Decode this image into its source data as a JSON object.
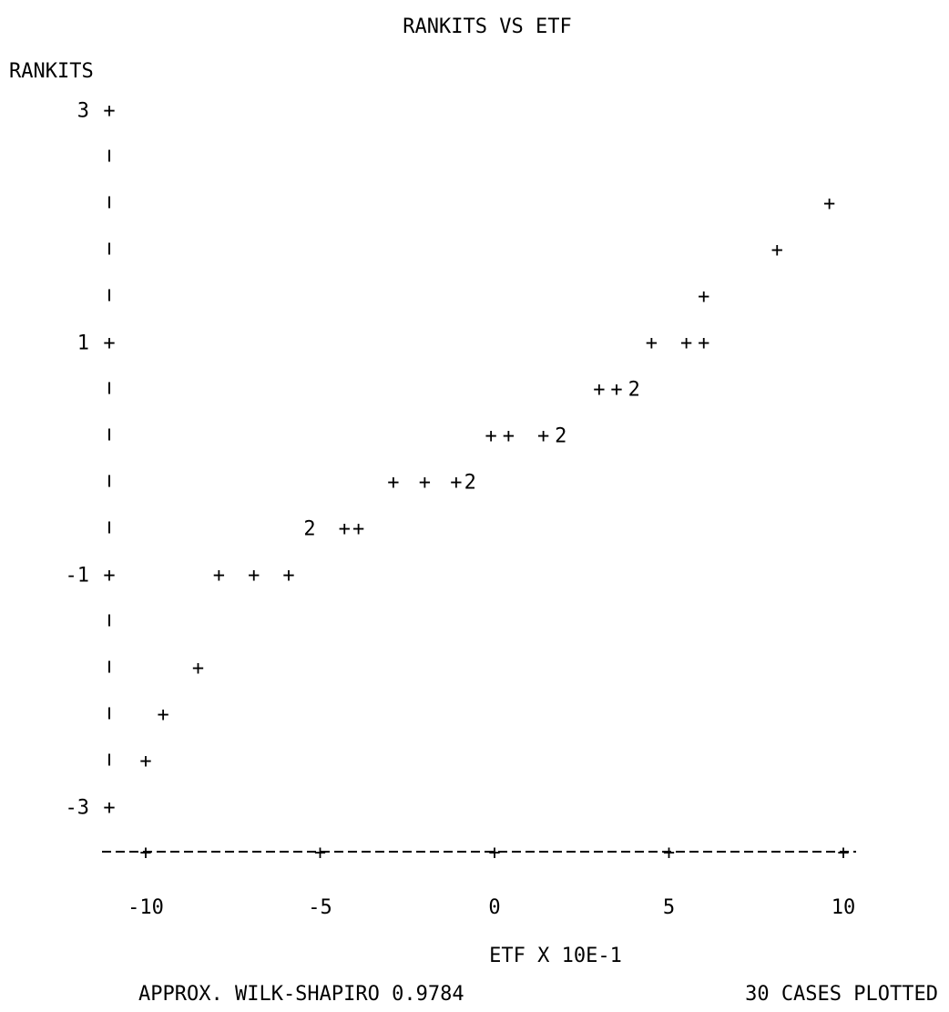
{
  "chart_data": {
    "type": "scatter",
    "title": "RANKITS VS ETF",
    "ylabel": "RANKITS",
    "xlabel": "ETF X 10E-1",
    "footer_left": "APPROX. WILK-SHAPIRO 0.9784",
    "footer_right": "30 CASES PLOTTED",
    "xlim": [
      -11,
      11
    ],
    "ylim": [
      -3.2,
      3
    ],
    "grid": false,
    "x_ticks": [
      {
        "value": -10,
        "label": "-10"
      },
      {
        "value": -5,
        "label": "-5"
      },
      {
        "value": 0,
        "label": "0"
      },
      {
        "value": 5,
        "label": "5"
      },
      {
        "value": 10,
        "label": "10"
      }
    ],
    "y_ticks": [
      {
        "value": 3,
        "label": "3"
      },
      {
        "value": 1,
        "label": "1"
      },
      {
        "value": -1,
        "label": "-1"
      },
      {
        "value": -3,
        "label": "-3"
      }
    ],
    "points": [
      {
        "x": -10.0,
        "y": -2.6,
        "symbol": "+"
      },
      {
        "x": -9.5,
        "y": -2.2,
        "symbol": "+"
      },
      {
        "x": -8.5,
        "y": -1.8,
        "symbol": "+"
      },
      {
        "x": -7.9,
        "y": -1.0,
        "symbol": "+"
      },
      {
        "x": -6.9,
        "y": -1.0,
        "symbol": "+"
      },
      {
        "x": -5.9,
        "y": -1.0,
        "symbol": "+"
      },
      {
        "x": -5.3,
        "y": -0.6,
        "symbol": "2"
      },
      {
        "x": -4.3,
        "y": -0.6,
        "symbol": "+"
      },
      {
        "x": -3.9,
        "y": -0.6,
        "symbol": "+"
      },
      {
        "x": -2.9,
        "y": -0.2,
        "symbol": "+"
      },
      {
        "x": -2.0,
        "y": -0.2,
        "symbol": "+"
      },
      {
        "x": -1.1,
        "y": -0.2,
        "symbol": "+"
      },
      {
        "x": -0.7,
        "y": -0.2,
        "symbol": "2"
      },
      {
        "x": -0.1,
        "y": 0.2,
        "symbol": "+"
      },
      {
        "x": 0.4,
        "y": 0.2,
        "symbol": "+"
      },
      {
        "x": 1.4,
        "y": 0.2,
        "symbol": "+"
      },
      {
        "x": 1.9,
        "y": 0.2,
        "symbol": "2"
      },
      {
        "x": 3.0,
        "y": 0.6,
        "symbol": "+"
      },
      {
        "x": 3.5,
        "y": 0.6,
        "symbol": "+"
      },
      {
        "x": 4.0,
        "y": 0.6,
        "symbol": "2"
      },
      {
        "x": 4.5,
        "y": 1.0,
        "symbol": "+"
      },
      {
        "x": 5.5,
        "y": 1.0,
        "symbol": "+"
      },
      {
        "x": 6.0,
        "y": 1.0,
        "symbol": "+"
      },
      {
        "x": 6.0,
        "y": 1.4,
        "symbol": "+"
      },
      {
        "x": 8.1,
        "y": 1.8,
        "symbol": "+"
      },
      {
        "x": 9.6,
        "y": 2.2,
        "symbol": "+"
      }
    ]
  }
}
